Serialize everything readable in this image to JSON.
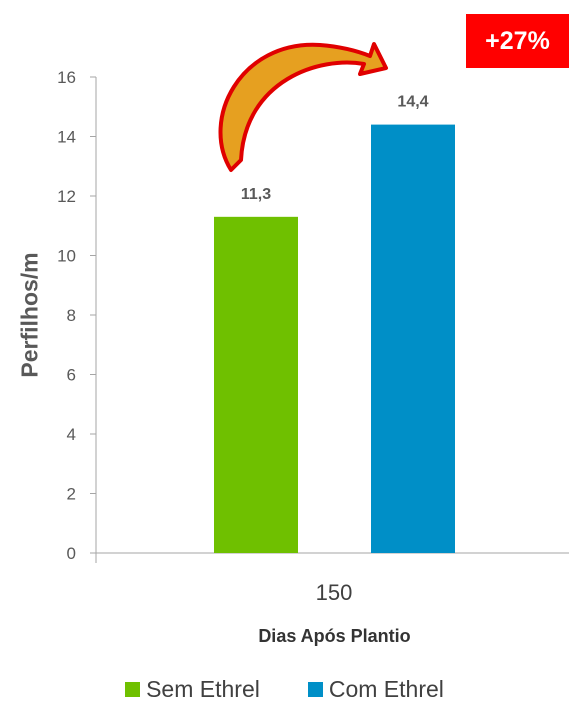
{
  "chart_data": {
    "type": "bar",
    "categories": [
      "150"
    ],
    "series": [
      {
        "name": "Sem Ethrel",
        "values": [
          11.3
        ],
        "label": "11,3",
        "color": "#6fc000"
      },
      {
        "name": "Com Ethrel",
        "values": [
          14.4
        ],
        "label": "14,4",
        "color": "#008fc7"
      }
    ],
    "xlabel": "Dias Após Plantio",
    "ylabel": "Perfilhos/m",
    "ylim": [
      0,
      16
    ],
    "yticks": [
      0,
      2,
      4,
      6,
      8,
      10,
      12,
      14,
      16
    ],
    "legend_position": "bottom",
    "grid": false,
    "annotation": {
      "text": "+27%",
      "color": "#ff0000"
    },
    "arrow_colors": {
      "outline": "#e00000",
      "fill": "#e6a020"
    }
  }
}
